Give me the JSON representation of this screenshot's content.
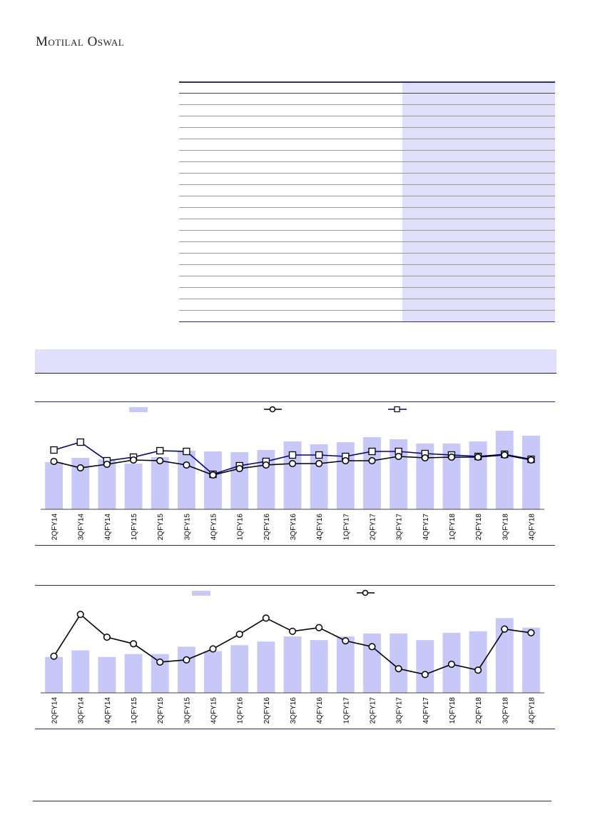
{
  "header": {
    "brand": "Motilal Oswal"
  },
  "colors": {
    "bar": "#c8c8f8",
    "line_primary": "#000000",
    "line_secondary": "#00008b",
    "table_shade": "#e0e0fc"
  },
  "table": {
    "row_count": 20
  },
  "chart_data": [
    {
      "type": "bar",
      "title": "",
      "categories": [
        "2QFY14",
        "3QFY14",
        "4QFY14",
        "1QFY15",
        "2QFY15",
        "3QFY15",
        "4QFY15",
        "1QFY16",
        "2QFY16",
        "3QFY16",
        "4QFY16",
        "1QFY17",
        "2QFY17",
        "3QFY17",
        "4QFY17",
        "1QFY18",
        "2QFY18",
        "3QFY18",
        "4QFY18"
      ],
      "series": [
        {
          "type": "bar",
          "values": [
            66,
            72,
            70,
            64,
            73,
            82,
            81,
            80,
            83,
            95,
            91,
            94,
            101,
            98,
            92,
            92,
            95,
            110,
            103
          ]
        },
        {
          "type": "line",
          "marker": "circle",
          "values": [
            67,
            58,
            63,
            69,
            68,
            62,
            48,
            57,
            62,
            64,
            64,
            68,
            68,
            74,
            72,
            73,
            73,
            76,
            69
          ]
        },
        {
          "type": "line",
          "marker": "square",
          "values": [
            83,
            94,
            68,
            73,
            82,
            81,
            49,
            61,
            67,
            76,
            76,
            74,
            81,
            81,
            78,
            76,
            74,
            77,
            70
          ]
        }
      ],
      "ylim": [
        0,
        120
      ],
      "grid": false,
      "legend_position": "top"
    },
    {
      "type": "bar",
      "title": "",
      "categories": [
        "2QFY14",
        "3QFY14",
        "4QFY14",
        "1QFY15",
        "2QFY15",
        "3QFY15",
        "4QFY15",
        "1QFY16",
        "2QFY16",
        "3QFY16",
        "4QFY16",
        "1QFY17",
        "2QFY17",
        "3QFY17",
        "4QFY17",
        "1QFY18",
        "2QFY18",
        "3QFY18",
        "4QFY18"
      ],
      "series": [
        {
          "type": "bar",
          "values": [
            49,
            58,
            49,
            53,
            53,
            63,
            57,
            65,
            70,
            77,
            72,
            77,
            81,
            81,
            72,
            82,
            84,
            102,
            89
          ]
        },
        {
          "type": "line",
          "marker": "circle",
          "values": [
            50,
            107,
            76,
            67,
            42,
            45,
            60,
            80,
            102,
            84,
            89,
            71,
            63,
            33,
            25,
            39,
            31,
            87,
            82
          ]
        }
      ],
      "ylim": [
        0,
        115
      ],
      "grid": false,
      "legend_position": "top"
    }
  ]
}
